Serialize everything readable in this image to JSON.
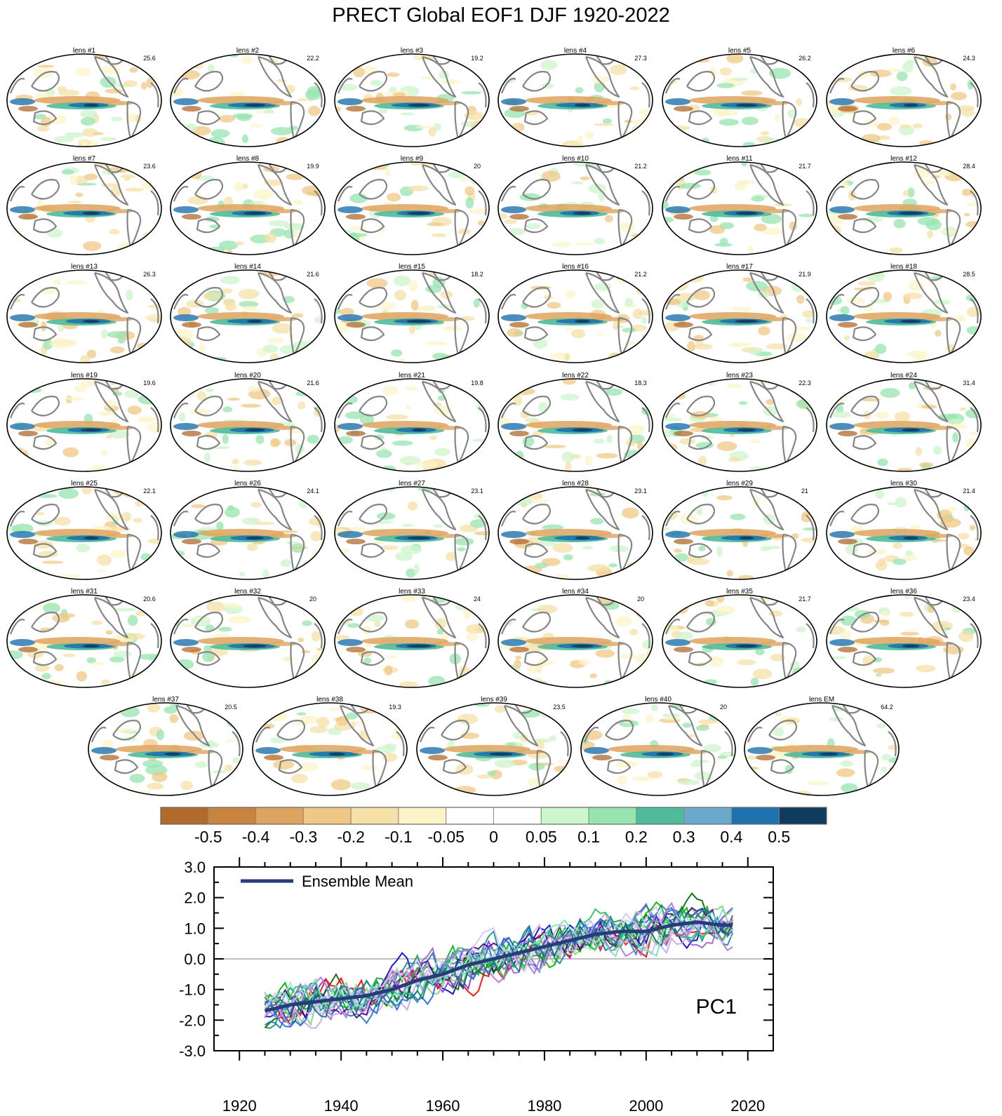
{
  "title": "PRECT Global EOF1 DJF 1920-2022",
  "panels": [
    {
      "label": "lens #1",
      "pct": "25.6"
    },
    {
      "label": "lens #2",
      "pct": "22.2"
    },
    {
      "label": "lens #3",
      "pct": "19.2"
    },
    {
      "label": "lens #4",
      "pct": "27.3"
    },
    {
      "label": "lens #5",
      "pct": "26.2"
    },
    {
      "label": "lens #6",
      "pct": "24.3"
    },
    {
      "label": "lens #7",
      "pct": "23.6"
    },
    {
      "label": "lens #8",
      "pct": "19.9"
    },
    {
      "label": "lens #9",
      "pct": "20"
    },
    {
      "label": "lens #10",
      "pct": "21.2"
    },
    {
      "label": "lens #11",
      "pct": "21.7"
    },
    {
      "label": "lens #12",
      "pct": "28.4"
    },
    {
      "label": "lens #13",
      "pct": "26.3"
    },
    {
      "label": "lens #14",
      "pct": "21.6"
    },
    {
      "label": "lens #15",
      "pct": "18.2"
    },
    {
      "label": "lens #16",
      "pct": "21.2"
    },
    {
      "label": "lens #17",
      "pct": "21.9"
    },
    {
      "label": "lens #18",
      "pct": "28.5"
    },
    {
      "label": "lens #19",
      "pct": "19.6"
    },
    {
      "label": "lens #20",
      "pct": "21.6"
    },
    {
      "label": "lens #21",
      "pct": "19.8"
    },
    {
      "label": "lens #22",
      "pct": "18.3"
    },
    {
      "label": "lens #23",
      "pct": "22.3"
    },
    {
      "label": "lens #24",
      "pct": "31.4"
    },
    {
      "label": "lens #25",
      "pct": "22.1"
    },
    {
      "label": "lens #26",
      "pct": "24.1"
    },
    {
      "label": "lens #27",
      "pct": "23.1"
    },
    {
      "label": "lens #28",
      "pct": "23.1"
    },
    {
      "label": "lens #29",
      "pct": "21"
    },
    {
      "label": "lens #30",
      "pct": "21.4"
    },
    {
      "label": "lens #31",
      "pct": "20.6"
    },
    {
      "label": "lens #32",
      "pct": "20"
    },
    {
      "label": "lens #33",
      "pct": "24"
    },
    {
      "label": "lens #34",
      "pct": "20"
    },
    {
      "label": "lens #35",
      "pct": "21.7"
    },
    {
      "label": "lens #36",
      "pct": "23.4"
    },
    {
      "label": "lens #37",
      "pct": "20.5"
    },
    {
      "label": "lens #38",
      "pct": "19.3"
    },
    {
      "label": "lens #39",
      "pct": "23.5"
    },
    {
      "label": "lens #40",
      "pct": "20"
    },
    {
      "label": "lens EM",
      "pct": "64.2"
    }
  ],
  "colorbar": {
    "colors": [
      "#b06a2c",
      "#c8843f",
      "#dea35e",
      "#efc886",
      "#f5e0a8",
      "#fbf4c8",
      "#ffffff",
      "#ffffff",
      "#cef6cc",
      "#97e4b0",
      "#4fbb9a",
      "#6aa9cb",
      "#1e72ad",
      "#0f3c5c"
    ],
    "labels": [
      "-0.5",
      "-0.4",
      "-0.3",
      "-0.2",
      "-0.1",
      "-0.05",
      "0",
      "0.05",
      "0.1",
      "0.2",
      "0.3",
      "0.4",
      "0.5"
    ]
  },
  "chart_data": {
    "type": "line",
    "xlim": [
      1915,
      2025
    ],
    "ylim": [
      -3.0,
      3.0
    ],
    "xticks": [
      1920,
      1940,
      1960,
      1980,
      2000,
      2020
    ],
    "xtick_labels": [
      "1920",
      "1940",
      "1960",
      "1980",
      "2000",
      "2020"
    ],
    "yticks": [
      -3,
      -2,
      -1,
      0,
      1,
      2,
      3
    ],
    "ytick_labels": [
      "-3.0",
      "-2.0",
      "-1.0",
      "0.0",
      "1.0",
      "2.0",
      "3.0"
    ],
    "annotation": "PC1",
    "legend": {
      "label": "Ensemble Mean",
      "position": "top-left",
      "color": "#283c7a"
    },
    "zero_line": true,
    "ensemble_mean": {
      "name": "Ensemble Mean",
      "x": [
        1925,
        1930,
        1935,
        1940,
        1945,
        1950,
        1955,
        1960,
        1965,
        1970,
        1975,
        1980,
        1985,
        1990,
        1995,
        2000,
        2005,
        2010,
        2015,
        2017
      ],
      "y": [
        -1.7,
        -1.5,
        -1.4,
        -1.3,
        -1.2,
        -1.0,
        -0.7,
        -0.5,
        -0.2,
        0.0,
        0.2,
        0.4,
        0.6,
        0.8,
        0.9,
        0.9,
        1.1,
        1.2,
        1.1,
        1.1
      ]
    },
    "member_colors": [
      "#0000cc",
      "#1a9850",
      "#8a2be2",
      "#006400",
      "#ff0000",
      "#9e5fd8",
      "#7fd07f",
      "#1f78b4",
      "#d0b3ff",
      "#0d9488",
      "#00b300",
      "#a6e3c8",
      "#4b0082",
      "#c4a3e8",
      "#2563eb",
      "#22c55e",
      "#b070e0",
      "#e0c0ff",
      "#0f766e",
      "#6ee7b7"
    ],
    "member_x_start": 1925,
    "member_x_end": 2017
  }
}
